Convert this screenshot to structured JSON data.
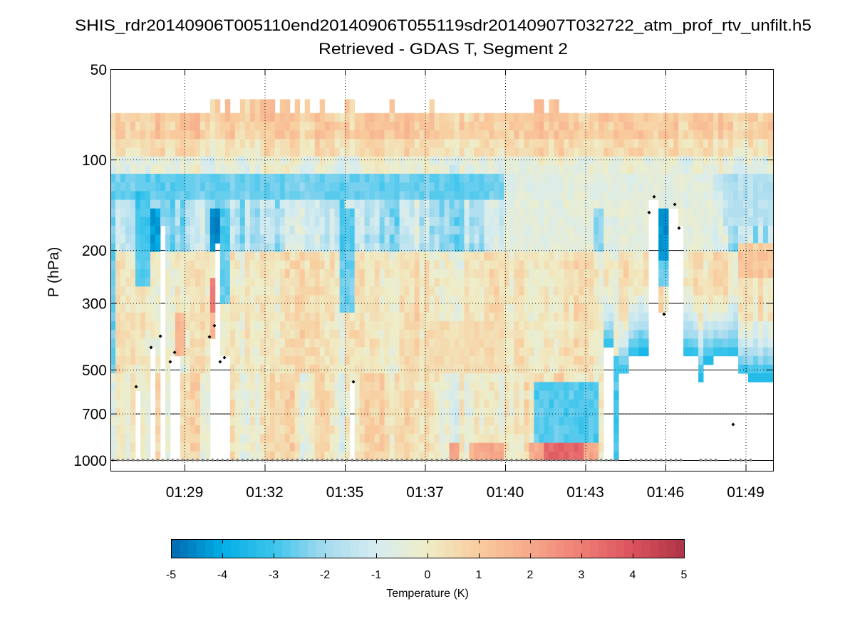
{
  "chart_data": {
    "type": "heatmap",
    "title": "SHIS_rdr20140906T005110end20140906T055119sdr20140907T032722_atm_prof_rtv_unfilt.h5",
    "subtitle": "Retrieved - GDAS T, Segment 2",
    "ylabel": "P (hPa)",
    "yscale": "log",
    "ylim": [
      50,
      1084
    ],
    "yticks": [
      50,
      100,
      200,
      300,
      500,
      700,
      1000
    ],
    "ytick_labels": [
      "50",
      "100",
      "200",
      "300",
      "500",
      "700",
      "1000"
    ],
    "x_unit": "tick index (0 = 01:29)",
    "xlim": [
      -0.924,
      7.342
    ],
    "xticks": [
      0,
      1,
      2,
      3,
      4,
      5,
      6,
      7
    ],
    "xtick_labels": [
      "01:29",
      "01:32",
      "01:35",
      "01:37",
      "01:40",
      "01:43",
      "01:46",
      "01:49"
    ],
    "grid": true,
    "data_top_hPa": 70,
    "data_top_extended_hPa": 63,
    "data_bottom_hPa": 1000,
    "n_columns": 133,
    "n_levels": 40,
    "noise_seed": 7,
    "extended_top_columns_x": [
      0.38,
      0.56,
      0.76,
      0.82,
      0.94,
      1.05,
      1.12,
      1.2,
      1.3,
      1.42,
      1.55,
      1.7,
      2.03,
      2.1,
      2.6,
      3.1,
      4.4,
      4.46,
      4.58,
      4.66
    ],
    "base_profile": [
      {
        "p": [
          63,
          85
        ],
        "v": 0.9
      },
      {
        "p": [
          85,
          100
        ],
        "v": 0.4
      },
      {
        "p": [
          100,
          112
        ],
        "v": -0.5
      },
      {
        "p": [
          112,
          140
        ],
        "v": -2.2
      },
      {
        "p": [
          140,
          200
        ],
        "v": -1.6
      },
      {
        "p": [
          200,
          500
        ],
        "v": 0.2
      },
      {
        "p": [
          500,
          1000
        ],
        "v": 0.0
      }
    ],
    "anomaly_regions": [
      {
        "x": [
          -0.92,
          4.0
        ],
        "p": [
          114,
          140
        ],
        "v": -2.6
      },
      {
        "x": [
          4.0,
          6.6
        ],
        "p": [
          112,
          200
        ],
        "v": -0.3
      },
      {
        "x": [
          -0.6,
          -0.45
        ],
        "p": [
          130,
          260
        ],
        "v": -3.2
      },
      {
        "x": [
          -0.45,
          -0.3
        ],
        "p": [
          150,
          200
        ],
        "v": -4.5
      },
      {
        "x": [
          -0.92,
          -0.85
        ],
        "p": [
          200,
          520
        ],
        "v": -3.0
      },
      {
        "x": [
          0.32,
          0.44
        ],
        "p": [
          145,
          205
        ],
        "v": -5.0
      },
      {
        "x": [
          0.32,
          0.38
        ],
        "p": [
          240,
          330
        ],
        "v": 3.5
      },
      {
        "x": [
          0.32,
          0.38
        ],
        "p": [
          330,
          385
        ],
        "v": 2.0
      },
      {
        "x": [
          0.44,
          0.56
        ],
        "p": [
          150,
          300
        ],
        "v": -3.0
      },
      {
        "x": [
          -0.42,
          -0.36
        ],
        "p": [
          620,
          860
        ],
        "v": -4.0
      },
      {
        "x": [
          -0.42,
          -0.36
        ],
        "p": [
          880,
          1000
        ],
        "v": 3.2
      },
      {
        "x": [
          -0.12,
          0.0
        ],
        "p": [
          330,
          450
        ],
        "v": 1.8
      },
      {
        "x": [
          1.95,
          2.1
        ],
        "p": [
          150,
          330
        ],
        "v": -3.0
      },
      {
        "x": [
          3.0,
          3.8
        ],
        "p": [
          350,
          500
        ],
        "v": 0.6
      },
      {
        "x": [
          4.35,
          5.15
        ],
        "p": [
          560,
          860
        ],
        "v": -3.3
      },
      {
        "x": [
          4.3,
          5.15
        ],
        "p": [
          860,
          1000
        ],
        "v": 2.3
      },
      {
        "x": [
          4.5,
          5.0
        ],
        "p": [
          890,
          1000
        ],
        "v": 3.8
      },
      {
        "x": [
          3.3,
          3.45
        ],
        "p": [
          880,
          1000
        ],
        "v": 2.8
      },
      {
        "x": [
          3.55,
          4.0
        ],
        "p": [
          880,
          1000
        ],
        "v": 2.2
      },
      {
        "x": [
          5.1,
          5.2
        ],
        "p": [
          150,
          200
        ],
        "v": -2.5
      },
      {
        "x": [
          5.378,
          5.44
        ],
        "p": [
          450,
          1000
        ],
        "v": -3.5
      },
      {
        "x": [
          5.93,
          6.05
        ],
        "p": [
          150,
          220
        ],
        "v": -5.0
      },
      {
        "x": [
          5.93,
          6.05
        ],
        "p": [
          220,
          265
        ],
        "v": -3.0
      },
      {
        "x": [
          6.7,
          7.35
        ],
        "p": [
          112,
          170
        ],
        "v": -1.6
      },
      {
        "x": [
          6.9,
          7.35
        ],
        "p": [
          190,
          250
        ],
        "v": 1.4
      }
    ],
    "cloud_masks": [
      {
        "x": [
          -0.613,
          -0.551
        ],
        "ctp": 570
      },
      {
        "x": [
          -0.418,
          -0.364
        ],
        "ctp": 421
      },
      {
        "x": [
          -0.284,
          -0.24
        ],
        "ctp": 169
      },
      {
        "x": [
          -0.187,
          -0.062
        ],
        "ctp": 445
      },
      {
        "x": [
          0.32,
          0.382
        ],
        "ctp": 389
      },
      {
        "x": [
          0.382,
          0.444
        ],
        "ctp": 188
      },
      {
        "x": [
          0.444,
          0.56
        ],
        "ctp": 451
      },
      {
        "x": [
          2.053,
          2.116
        ],
        "ctp": 567
      },
      {
        "x": [
          5.253,
          5.378
        ],
        "ctp": 433,
        "blue_base": true
      },
      {
        "x": [
          5.44,
          5.564
        ],
        "ctp": 531,
        "blue_base": true
      },
      {
        "x": [
          5.564,
          5.653
        ],
        "ctp": 463,
        "blue_base": true
      },
      {
        "x": [
          5.653,
          5.804
        ],
        "ctp": 437,
        "blue_base": true
      },
      {
        "x": [
          5.804,
          5.929
        ],
        "ctp": 133
      },
      {
        "x": [
          5.929,
          6.053
        ],
        "ctp": 326
      },
      {
        "x": [
          6.053,
          6.142
        ],
        "ctp": 141
      },
      {
        "x": [
          6.142,
          6.231
        ],
        "ctp": 169
      },
      {
        "x": [
          6.231,
          6.418
        ],
        "ctp": 455,
        "blue_base": true
      },
      {
        "x": [
          6.418,
          6.471
        ],
        "ctp": 540,
        "blue_base": true
      },
      {
        "x": [
          6.471,
          6.613
        ],
        "ctp": 476,
        "blue_base": true
      },
      {
        "x": [
          6.613,
          6.791
        ],
        "ctp": 455,
        "blue_base": true
      },
      {
        "x": [
          6.791,
          6.916
        ],
        "ctp": 455,
        "blue_base": true
      },
      {
        "x": [
          6.916,
          7.04
        ],
        "ctp": 531,
        "blue_base": true
      },
      {
        "x": [
          7.04,
          7.342
        ],
        "ctp": 540,
        "blue_base": true
      }
    ],
    "cloud_top_markers": [
      {
        "x": -0.604,
        "p": 570
      },
      {
        "x": -0.418,
        "p": 422
      },
      {
        "x": -0.302,
        "p": 387
      },
      {
        "x": -0.178,
        "p": 471
      },
      {
        "x": -0.124,
        "p": 438
      },
      {
        "x": 0.311,
        "p": 389
      },
      {
        "x": 0.373,
        "p": 357
      },
      {
        "x": 0.444,
        "p": 471
      },
      {
        "x": 0.498,
        "p": 456
      },
      {
        "x": 2.107,
        "p": 549
      },
      {
        "x": 5.796,
        "p": 150
      },
      {
        "x": 5.858,
        "p": 133
      },
      {
        "x": 5.982,
        "p": 327
      },
      {
        "x": 6.116,
        "p": 141
      },
      {
        "x": 6.169,
        "p": 169
      },
      {
        "x": 6.844,
        "p": 761
      }
    ],
    "surface_marker_p": 1000,
    "surface_marker_gaps_x": [
      [
        5.43,
        5.55
      ],
      [
        6.25,
        6.41
      ],
      [
        6.68,
        6.79
      ],
      [
        7.1,
        7.32
      ]
    ],
    "colorbar": {
      "label": "Temperature (K)",
      "clim": [
        -5,
        5
      ],
      "ticks": [
        -5,
        -4,
        -3,
        -2,
        -1,
        0,
        1,
        2,
        3,
        4,
        5
      ],
      "tick_labels": [
        "-5",
        "-4",
        "-3",
        "-2",
        "-1",
        "0",
        "1",
        "2",
        "3",
        "4",
        "5"
      ],
      "n_levels": 60,
      "colors": [
        "#0068b0",
        "#02aee5",
        "#3cc4ec",
        "#a5dbee",
        "#d6ecf0",
        "#efedc6",
        "#f9cc9e",
        "#f6a98a",
        "#ef7d75",
        "#db525d",
        "#ae3447"
      ]
    }
  }
}
